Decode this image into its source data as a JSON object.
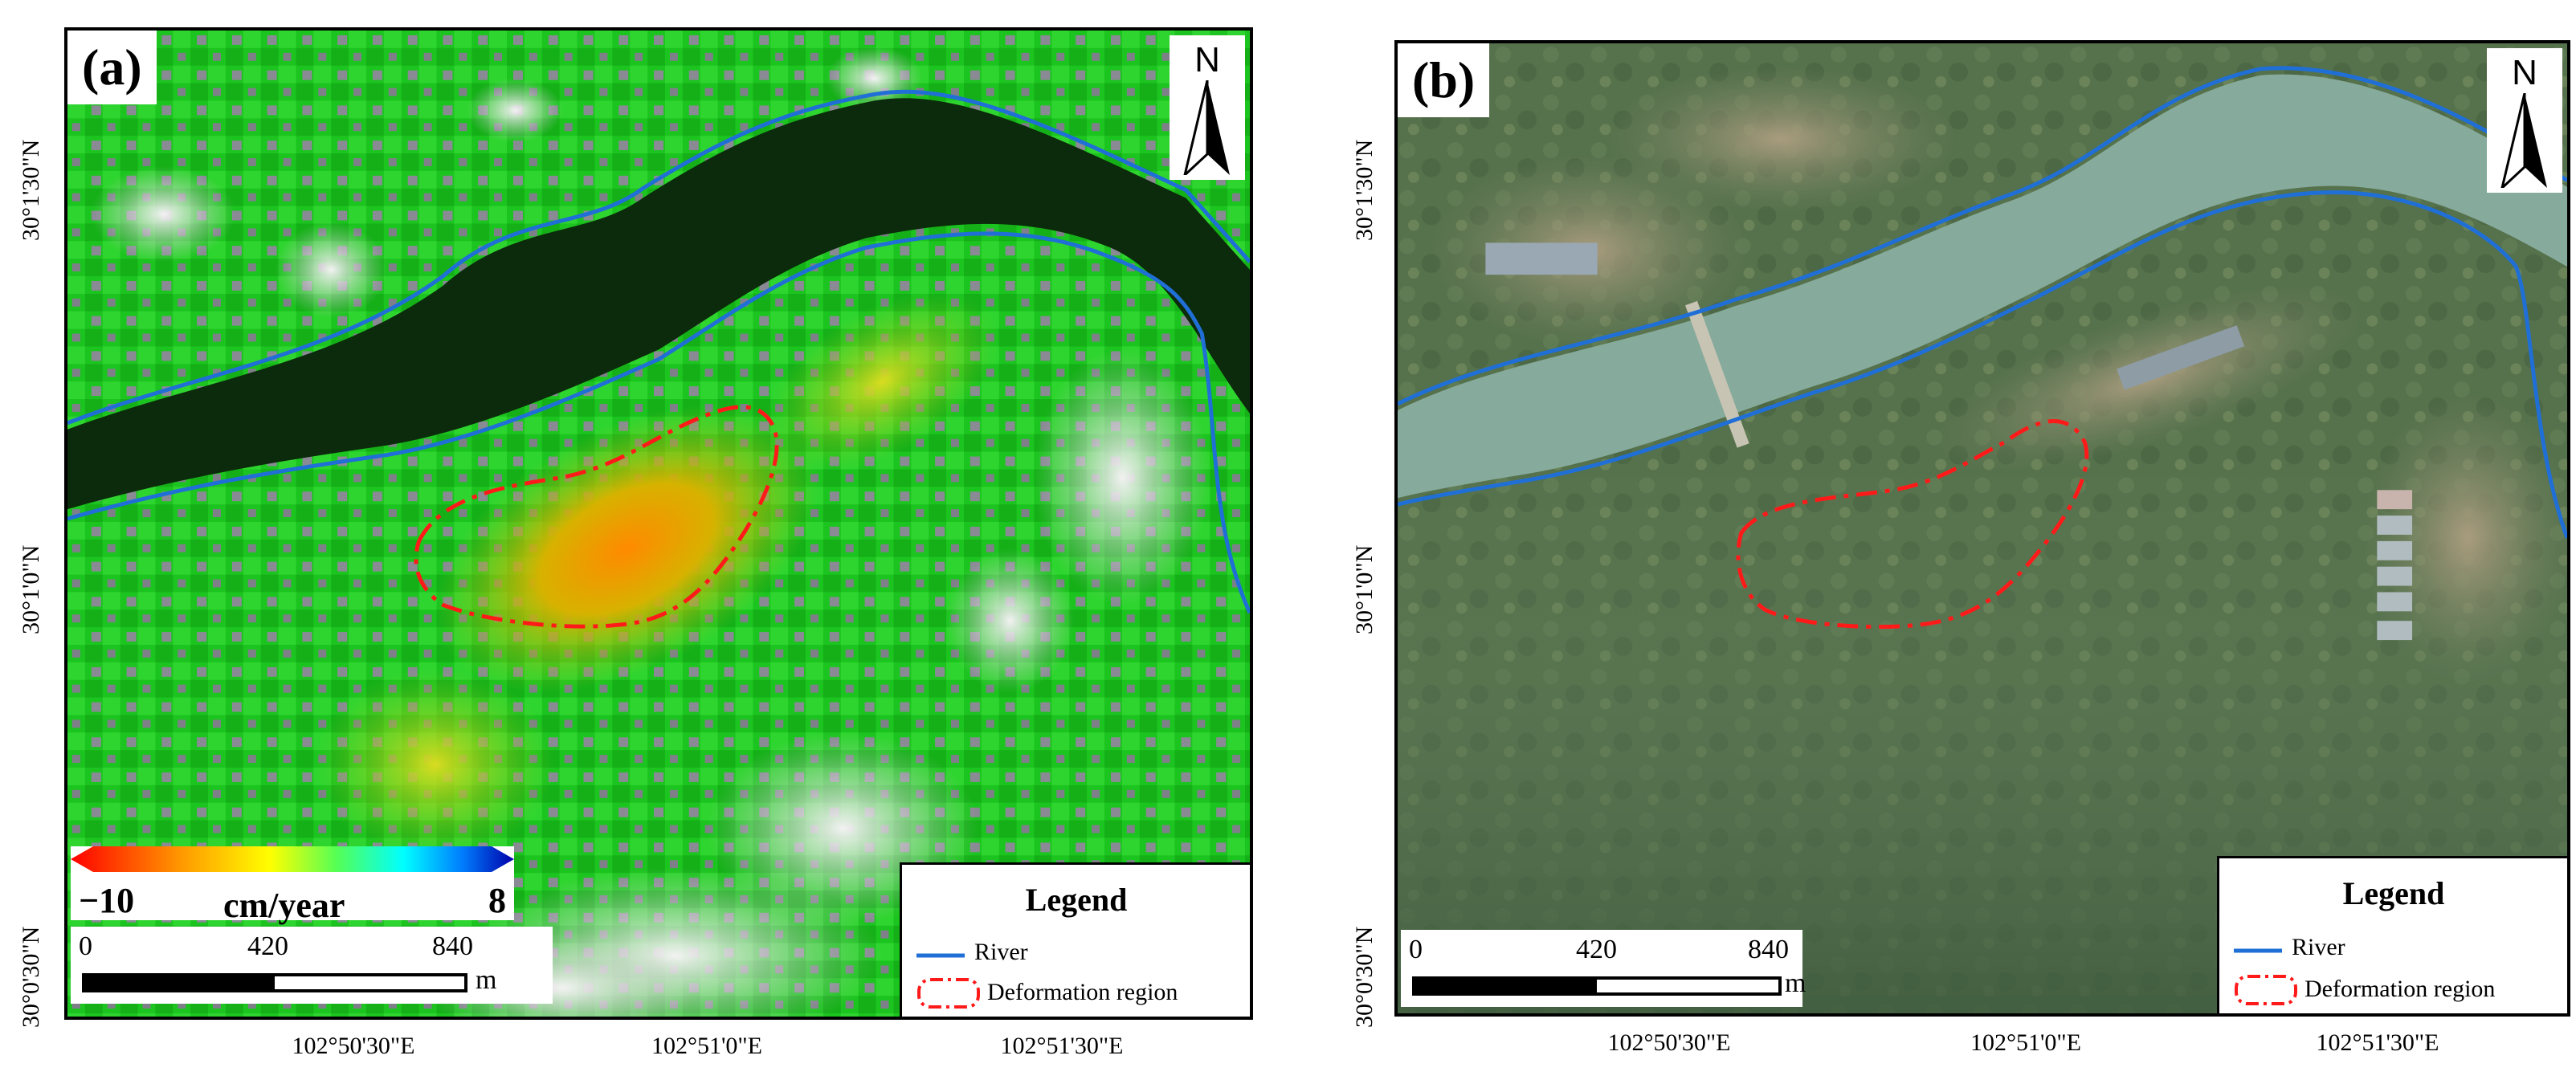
{
  "panel_a": {
    "label": "(a)",
    "north": "N",
    "colorbar": {
      "min": "−10",
      "max": "8",
      "unit": "cm/year"
    },
    "scale": {
      "ticks": [
        "0",
        "420",
        "840"
      ],
      "unit": "m"
    },
    "legend": {
      "title": "Legend",
      "river": "River",
      "deformation": "Deformation region"
    },
    "lat_labels": [
      "30°1'30\"N",
      "30°1'0\"N",
      "30°0'30\"N"
    ],
    "lon_labels": [
      "102°50'30\"E",
      "102°51'0\"E",
      "102°51'30\"E"
    ]
  },
  "panel_b": {
    "label": "(b)",
    "north": "N",
    "scale": {
      "ticks": [
        "0",
        "420",
        "840"
      ],
      "unit": "m"
    },
    "legend": {
      "title": "Legend",
      "river": "River",
      "deformation": "Deformation region"
    },
    "lat_labels": [
      "30°1'30\"N",
      "30°1'0\"N",
      "30°0'30\"N"
    ],
    "lon_labels": [
      "102°50'30\"E",
      "102°51'0\"E",
      "102°51'30\"E"
    ]
  },
  "colors": {
    "river": "#1f6fd6",
    "deformation": "#ff1a1a",
    "insar_green": "#19c81c",
    "water_dark": "#0c2a0c",
    "satellite_vegetation": "#54704a",
    "satellite_water": "#86aa9c"
  }
}
